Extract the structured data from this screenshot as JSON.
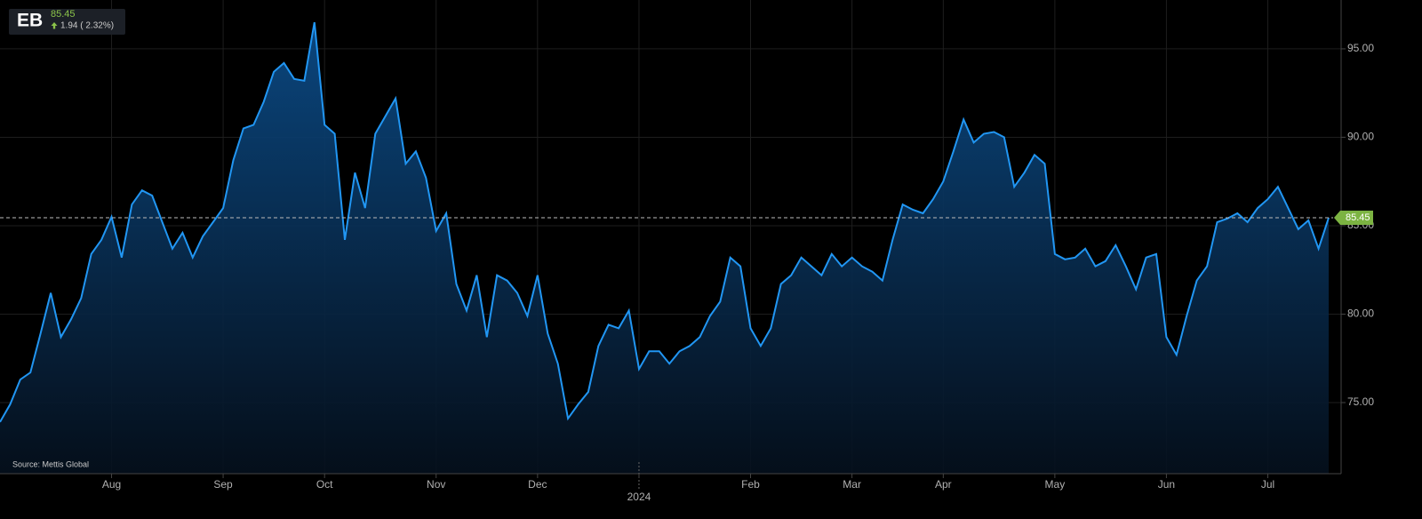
{
  "header": {
    "symbol": "EB",
    "change": "1.94 ( 2.32%)"
  },
  "source": "Source: Mettis Global",
  "chart_data": {
    "type": "area",
    "categories": [
      null,
      null,
      null,
      null,
      null,
      null,
      null,
      null,
      null,
      null,
      null,
      "Aug",
      null,
      null,
      null,
      null,
      null,
      null,
      null,
      null,
      null,
      null,
      "Sep",
      null,
      null,
      null,
      null,
      null,
      null,
      null,
      null,
      null,
      "Oct",
      null,
      null,
      null,
      null,
      null,
      null,
      null,
      null,
      null,
      null,
      "Nov",
      null,
      null,
      null,
      null,
      null,
      null,
      null,
      null,
      null,
      "Dec",
      null,
      null,
      null,
      null,
      null,
      null,
      null,
      null,
      null,
      "2024",
      null,
      null,
      null,
      null,
      null,
      null,
      null,
      null,
      null,
      null,
      "Feb",
      null,
      null,
      null,
      null,
      null,
      null,
      null,
      null,
      null,
      "Mar",
      null,
      null,
      null,
      null,
      null,
      null,
      null,
      null,
      "Apr",
      null,
      null,
      null,
      null,
      null,
      null,
      null,
      null,
      null,
      null,
      "May",
      null,
      null,
      null,
      null,
      null,
      null,
      null,
      null,
      null,
      null,
      "Jun",
      null,
      null,
      null,
      null,
      null,
      null,
      null,
      null,
      null,
      "Jul",
      null,
      null,
      null,
      null,
      null,
      null
    ],
    "values": [
      73.9,
      74.9,
      76.3,
      76.7,
      78.9,
      81.2,
      78.7,
      79.7,
      80.9,
      83.4,
      84.2,
      85.5,
      83.2,
      86.2,
      87.0,
      86.7,
      85.2,
      83.7,
      84.6,
      83.2,
      84.4,
      85.2,
      86.0,
      88.7,
      90.5,
      90.7,
      92.0,
      93.7,
      94.2,
      93.3,
      93.2,
      96.5,
      90.7,
      90.2,
      84.2,
      88.0,
      86.0,
      90.2,
      91.2,
      92.2,
      88.5,
      89.2,
      87.7,
      84.7,
      85.7,
      81.7,
      80.2,
      82.2,
      78.7,
      82.2,
      81.9,
      81.2,
      79.9,
      82.2,
      78.9,
      77.2,
      74.1,
      74.9,
      75.6,
      78.2,
      79.4,
      79.2,
      80.2,
      76.9,
      77.9,
      77.9,
      77.2,
      77.9,
      78.2,
      78.7,
      79.9,
      80.7,
      83.2,
      82.7,
      79.2,
      78.2,
      79.2,
      81.7,
      82.2,
      83.2,
      82.7,
      82.2,
      83.4,
      82.7,
      83.2,
      82.7,
      82.4,
      81.9,
      84.2,
      86.2,
      85.9,
      85.7,
      86.5,
      87.5,
      89.2,
      91.0,
      89.7,
      90.2,
      90.3,
      90.0,
      87.2,
      88.0,
      89.0,
      88.5,
      83.4,
      83.1,
      83.2,
      83.7,
      82.7,
      83.0,
      83.9,
      82.7,
      81.4,
      83.2,
      83.4,
      78.7,
      77.7,
      79.9,
      81.9,
      82.7,
      85.2,
      85.4,
      85.7,
      85.2,
      86.0,
      86.5,
      87.2,
      86.0,
      84.8,
      85.3,
      83.7,
      85.45
    ],
    "value_labels": {
      "131": "85.45"
    },
    "color": "#2196f3",
    "ylim": [
      70.98,
      97.76
    ],
    "yticks": [
      {
        "value": 75,
        "label": "75.00"
      },
      {
        "value": 80,
        "label": "80.00"
      },
      {
        "value": 85,
        "label": "85.00"
      },
      {
        "value": 90,
        "label": "90.00"
      },
      {
        "value": 95,
        "label": "95.00"
      }
    ],
    "grid": true,
    "last_price_color": "#7cb342"
  }
}
